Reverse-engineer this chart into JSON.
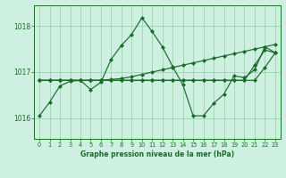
{
  "title": "Graphe pression niveau de la mer (hPa)",
  "bg_color": "#cdf0e0",
  "grid_color": "#99ccaa",
  "line_color": "#1a6b2a",
  "ylim": [
    1015.55,
    1018.45
  ],
  "yticks": [
    1016,
    1017,
    1018
  ],
  "xlim": [
    -0.5,
    23.5
  ],
  "xticks": [
    0,
    1,
    2,
    3,
    4,
    5,
    6,
    7,
    8,
    9,
    10,
    11,
    12,
    13,
    14,
    15,
    16,
    17,
    18,
    19,
    20,
    21,
    22,
    23
  ],
  "s1": [
    1016.05,
    1016.35,
    1016.7,
    1016.8,
    1016.82,
    1016.62,
    1016.78,
    1017.28,
    1017.58,
    1017.82,
    1018.18,
    1017.88,
    1017.55,
    1017.12,
    1016.72,
    1016.05,
    1016.05,
    1016.32,
    1016.52,
    1016.92,
    1016.88,
    1017.05,
    1017.55,
    1017.42
  ],
  "s2": [
    1016.82,
    1016.82,
    1016.82,
    1016.82,
    1016.82,
    1016.82,
    1016.82,
    1016.84,
    1016.86,
    1016.9,
    1016.95,
    1017.0,
    1017.05,
    1017.1,
    1017.15,
    1017.2,
    1017.25,
    1017.3,
    1017.35,
    1017.4,
    1017.45,
    1017.5,
    1017.55,
    1017.6
  ],
  "s3": [
    1016.82,
    1016.82,
    1016.82,
    1016.82,
    1016.82,
    1016.82,
    1016.82,
    1016.82,
    1016.82,
    1016.82,
    1016.82,
    1016.82,
    1016.82,
    1016.82,
    1016.82,
    1016.82,
    1016.82,
    1016.82,
    1016.82,
    1016.82,
    1016.82,
    1016.82,
    1017.1,
    1017.42
  ],
  "s4": [
    1016.82,
    1016.82,
    1016.82,
    1016.82,
    1016.82,
    1016.82,
    1016.82,
    1016.82,
    1016.82,
    1016.82,
    1016.82,
    1016.82,
    1016.82,
    1016.82,
    1016.82,
    1016.82,
    1016.82,
    1016.82,
    1016.82,
    1016.82,
    1016.82,
    1017.15,
    1017.48,
    1017.42
  ]
}
